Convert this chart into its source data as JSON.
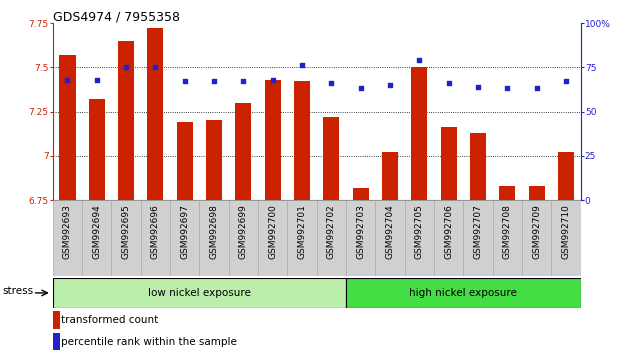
{
  "title": "GDS4974 / 7955358",
  "categories": [
    "GSM992693",
    "GSM992694",
    "GSM992695",
    "GSM992696",
    "GSM992697",
    "GSM992698",
    "GSM992699",
    "GSM992700",
    "GSM992701",
    "GSM992702",
    "GSM992703",
    "GSM992704",
    "GSM992705",
    "GSM992706",
    "GSM992707",
    "GSM992708",
    "GSM992709",
    "GSM992710"
  ],
  "bar_values": [
    7.57,
    7.32,
    7.65,
    7.72,
    7.19,
    7.2,
    7.3,
    7.43,
    7.42,
    7.22,
    6.82,
    7.02,
    7.5,
    7.16,
    7.13,
    6.83,
    6.83,
    7.02
  ],
  "dot_values": [
    68,
    68,
    75,
    75,
    67,
    67,
    67,
    68,
    76,
    66,
    63,
    65,
    79,
    66,
    64,
    63,
    63,
    67
  ],
  "bar_color": "#cc2200",
  "dot_color": "#2222cc",
  "ylim_left": [
    6.75,
    7.75
  ],
  "ylim_right": [
    0,
    100
  ],
  "yticks_left": [
    6.75,
    7.0,
    7.25,
    7.5,
    7.75
  ],
  "ytick_labels_left": [
    "6.75",
    "7",
    "7.25",
    "7.5",
    "7.75"
  ],
  "yticks_right": [
    0,
    25,
    50,
    75,
    100
  ],
  "ytick_labels_right": [
    "0",
    "25",
    "50",
    "75",
    "100%"
  ],
  "group1_label": "low nickel exposure",
  "group1_count": 10,
  "group2_label": "high nickel exposure",
  "group1_color": "#bbeeaa",
  "group2_color": "#44dd44",
  "stress_label": "stress",
  "legend_bar": "transformed count",
  "legend_dot": "percentile rank within the sample",
  "grid_yticks": [
    7.0,
    7.25,
    7.5
  ],
  "bar_width": 0.55,
  "title_fontsize": 9,
  "tick_fontsize": 6.5,
  "label_fontsize": 7.5
}
